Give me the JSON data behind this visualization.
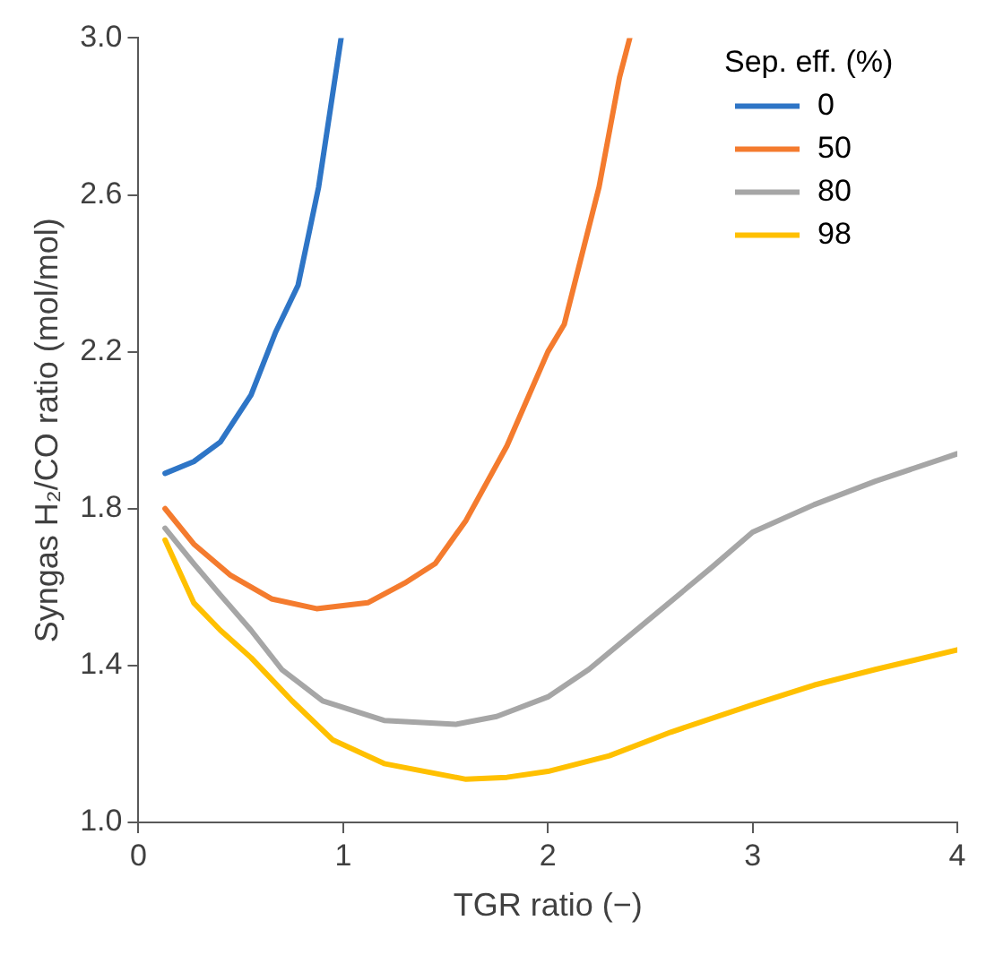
{
  "chart_data": {
    "type": "line",
    "xlabel": "TGR ratio (−)",
    "ylabel": "Syngas H₂/CO ratio (mol/mol)",
    "legend_title": "Sep. eff. (%)",
    "legend": "top right",
    "grid": false,
    "marker": "none",
    "line_style": "solid",
    "xlim": [
      0,
      4
    ],
    "xticks": [
      0,
      1,
      2,
      3,
      4
    ],
    "ylim": [
      1,
      3
    ],
    "yticks": [
      {
        "value": 1,
        "label": "1.0"
      },
      {
        "value": 1.4,
        "label": "1.4"
      },
      {
        "value": 1.8,
        "label": "1.8"
      },
      {
        "value": 2.2,
        "label": "2.2"
      },
      {
        "value": 2.6,
        "label": "2.6"
      },
      {
        "value": 3,
        "label": "3.0"
      }
    ],
    "series": [
      {
        "name": "0",
        "color": "#2e75c6",
        "x": [
          0.13,
          0.27,
          0.4,
          0.55,
          0.67,
          0.78,
          0.88,
          0.99
        ],
        "values": [
          1.89,
          1.92,
          1.97,
          2.09,
          2.25,
          2.37,
          2.62,
          3.0
        ]
      },
      {
        "name": "50",
        "color": "#f47b2e",
        "x": [
          0.13,
          0.27,
          0.45,
          0.65,
          0.87,
          1.12,
          1.3,
          1.45,
          1.6,
          1.8,
          2.0,
          2.08,
          2.25,
          2.35,
          2.4
        ],
        "values": [
          1.8,
          1.71,
          1.63,
          1.57,
          1.545,
          1.56,
          1.61,
          1.66,
          1.77,
          1.96,
          2.2,
          2.27,
          2.62,
          2.9,
          3.0
        ]
      },
      {
        "name": "80",
        "color": "#a6a6a6",
        "x": [
          0.13,
          0.27,
          0.4,
          0.55,
          0.7,
          0.9,
          1.2,
          1.55,
          1.75,
          2.0,
          2.2,
          2.5,
          2.8,
          3.0,
          3.3,
          3.6,
          4.0
        ],
        "values": [
          1.75,
          1.66,
          1.58,
          1.49,
          1.39,
          1.31,
          1.26,
          1.25,
          1.27,
          1.32,
          1.39,
          1.52,
          1.65,
          1.74,
          1.81,
          1.87,
          1.94
        ]
      },
      {
        "name": "98",
        "color": "#ffc000",
        "x": [
          0.13,
          0.27,
          0.4,
          0.55,
          0.75,
          0.95,
          1.2,
          1.6,
          1.8,
          2.0,
          2.3,
          2.6,
          3.0,
          3.3,
          3.6,
          4.0
        ],
        "values": [
          1.72,
          1.56,
          1.49,
          1.42,
          1.31,
          1.21,
          1.15,
          1.11,
          1.115,
          1.13,
          1.17,
          1.23,
          1.3,
          1.35,
          1.39,
          1.44
        ]
      }
    ]
  }
}
